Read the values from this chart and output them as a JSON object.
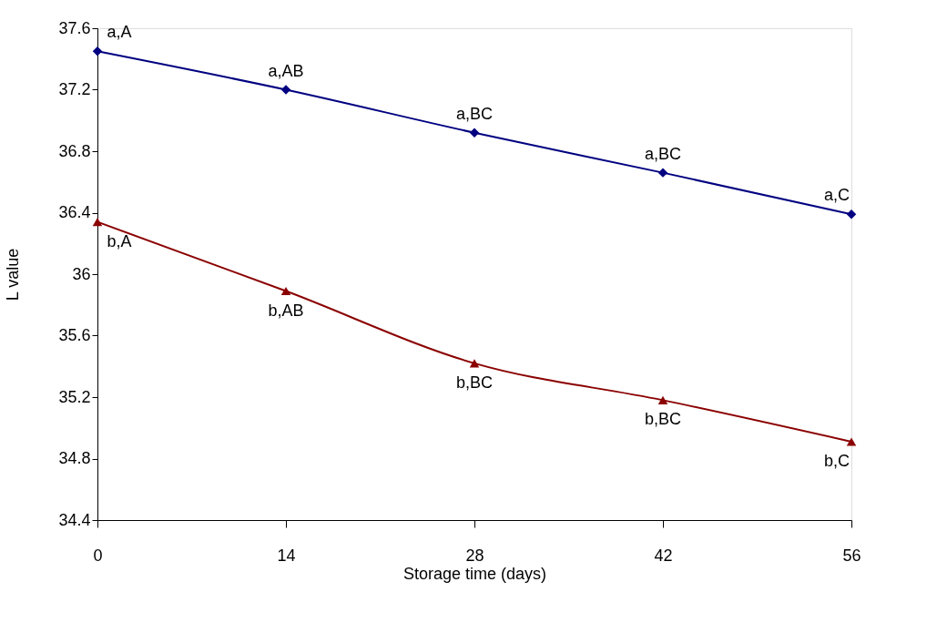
{
  "chart_data": {
    "type": "line",
    "xlabel": "Storage time (days)",
    "ylabel": "L value",
    "x": [
      0,
      14,
      28,
      42,
      56
    ],
    "xlim": [
      0,
      56
    ],
    "xticks": [
      0,
      14,
      28,
      42,
      56
    ],
    "ylim": [
      34.4,
      37.6
    ],
    "yticks": [
      34.4,
      34.8,
      35.2,
      35.6,
      36,
      36.4,
      36.8,
      37.2,
      37.6
    ],
    "series": [
      {
        "color": "#000080",
        "marker": "diamond",
        "values": [
          37.45,
          37.2,
          36.92,
          36.66,
          36.39
        ]
      },
      {
        "color": "#8b0000",
        "marker": "triangle",
        "values": [
          36.34,
          35.89,
          35.42,
          35.18,
          34.91
        ]
      }
    ],
    "annotations": [
      {
        "text": "a,A",
        "x": 0,
        "y": 37.45
      },
      {
        "text": "a,AB",
        "x": 14,
        "y": 37.2
      },
      {
        "text": "a,BC",
        "x": 28,
        "y": 36.92
      },
      {
        "text": "a,BC",
        "x": 42,
        "y": 36.66
      },
      {
        "text": "a,C",
        "x": 56,
        "y": 36.39
      },
      {
        "text": "b,A",
        "x": 0,
        "y": 36.34
      },
      {
        "text": "b,AB",
        "x": 14,
        "y": 35.89
      },
      {
        "text": "b,BC",
        "x": 28,
        "y": 35.42
      },
      {
        "text": "b,BC",
        "x": 42,
        "y": 35.18
      },
      {
        "text": "b,C",
        "x": 56,
        "y": 34.91
      }
    ],
    "grid": false,
    "line_style": "solid"
  }
}
